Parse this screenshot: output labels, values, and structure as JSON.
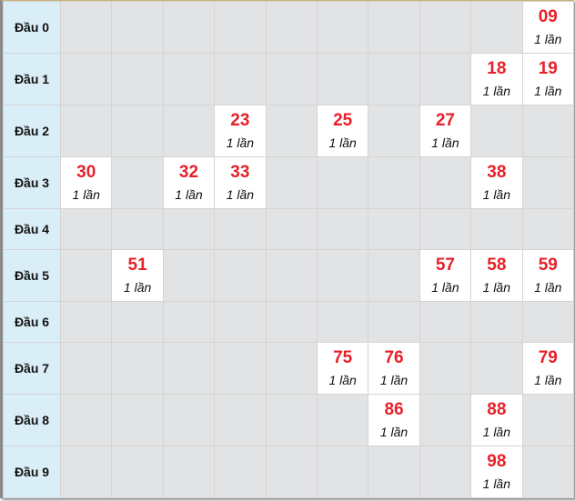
{
  "count_label": "1 lần",
  "rows": [
    {
      "label": "Đầu 0",
      "cells": [
        null,
        null,
        null,
        null,
        null,
        null,
        null,
        null,
        null,
        "09"
      ]
    },
    {
      "label": "Đầu 1",
      "cells": [
        null,
        null,
        null,
        null,
        null,
        null,
        null,
        null,
        "18",
        "19"
      ]
    },
    {
      "label": "Đầu 2",
      "cells": [
        null,
        null,
        null,
        "23",
        null,
        "25",
        null,
        "27",
        null,
        null
      ]
    },
    {
      "label": "Đầu 3",
      "cells": [
        "30",
        null,
        "32",
        "33",
        null,
        null,
        null,
        null,
        "38",
        null
      ]
    },
    {
      "label": "Đầu 4",
      "cells": [
        null,
        null,
        null,
        null,
        null,
        null,
        null,
        null,
        null,
        null
      ]
    },
    {
      "label": "Đầu 5",
      "cells": [
        null,
        "51",
        null,
        null,
        null,
        null,
        null,
        "57",
        "58",
        "59"
      ]
    },
    {
      "label": "Đầu 6",
      "cells": [
        null,
        null,
        null,
        null,
        null,
        null,
        null,
        null,
        null,
        null
      ]
    },
    {
      "label": "Đầu 7",
      "cells": [
        null,
        null,
        null,
        null,
        null,
        "75",
        "76",
        null,
        null,
        "79"
      ]
    },
    {
      "label": "Đầu 8",
      "cells": [
        null,
        null,
        null,
        null,
        null,
        null,
        "86",
        null,
        "88",
        null
      ]
    },
    {
      "label": "Đầu 9",
      "cells": [
        null,
        null,
        null,
        null,
        null,
        null,
        null,
        null,
        "98",
        null
      ]
    }
  ],
  "colors": {
    "number": "#e8202a",
    "label_bg": "#daeef8",
    "empty_bg": "#e2e3e5",
    "hit_bg": "#ffffff"
  }
}
